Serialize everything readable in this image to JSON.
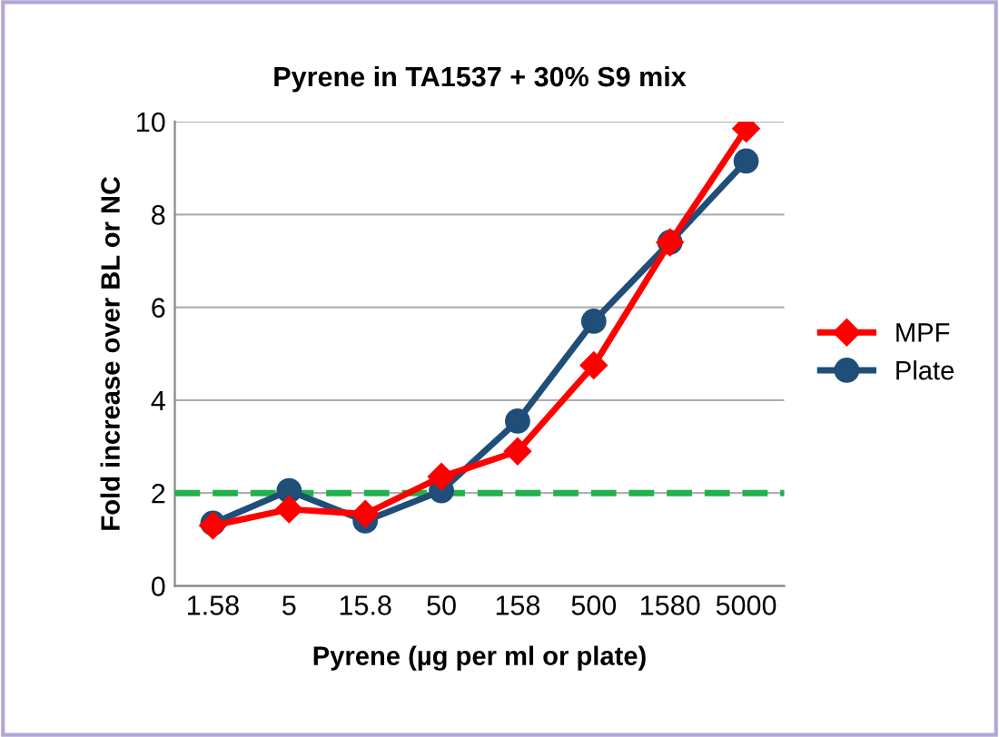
{
  "chart_data": {
    "type": "line",
    "title": "Pyrene in TA1537 + 30% S9 mix",
    "xlabel": "Pyrene (µg per ml or plate)",
    "ylabel": "Fold increase over BL or NC",
    "categories": [
      "1.58",
      "5",
      "15.8",
      "50",
      "158",
      "500",
      "1580",
      "5000"
    ],
    "series": [
      {
        "name": "MPF",
        "color": "#ff0000",
        "marker": "diamond",
        "values": [
          1.3,
          1.65,
          1.55,
          2.35,
          2.9,
          4.75,
          7.4,
          9.85
        ]
      },
      {
        "name": "Plate",
        "color": "#1f4e79",
        "marker": "circle",
        "values": [
          1.35,
          2.05,
          1.4,
          2.05,
          3.55,
          5.7,
          7.4,
          9.15
        ]
      }
    ],
    "ylim": [
      0,
      10
    ],
    "yticks": [
      0,
      2,
      4,
      6,
      8,
      10
    ],
    "grid": "y",
    "legend": "right",
    "ref_lines": [
      {
        "axis": "y",
        "value": 2,
        "label": null,
        "color": "#22b14c",
        "line_style": "dashed"
      }
    ]
  }
}
